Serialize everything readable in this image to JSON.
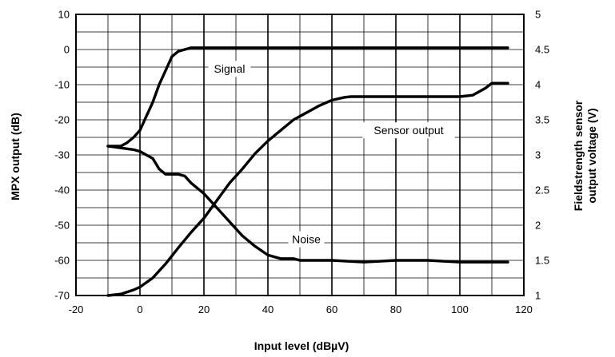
{
  "chart_data": {
    "type": "line",
    "title": "",
    "xlabel": "Input level (dBµV)",
    "ylabel": "MPX output (dB)",
    "y2label_lines": [
      "Fieldstrength sensor",
      "output  voltage (V)"
    ],
    "xlim": [
      -20,
      120
    ],
    "ylim": [
      -70,
      10
    ],
    "y2lim": [
      1,
      5
    ],
    "x_ticks": [
      -20,
      0,
      20,
      40,
      60,
      80,
      100,
      120
    ],
    "y_ticks": [
      10,
      0,
      -10,
      -20,
      -30,
      -40,
      -50,
      -60,
      -70
    ],
    "y2_ticks": [
      5,
      4.5,
      4,
      3.5,
      3,
      2.5,
      2,
      1.5,
      1
    ],
    "grid": true,
    "legend": "none",
    "series": [
      {
        "name": "Signal",
        "axis": "left",
        "x": [
          -10,
          -6,
          -4,
          -2,
          0,
          2,
          4,
          6,
          8,
          10,
          12,
          14,
          16,
          18,
          20,
          40,
          60,
          80,
          100,
          115
        ],
        "y": [
          -27.5,
          -27.5,
          -26.5,
          -25,
          -23,
          -19,
          -15,
          -10,
          -6,
          -2,
          -0.5,
          0,
          0.5,
          0.5,
          0.5,
          0.5,
          0.5,
          0.5,
          0.5,
          0.5
        ]
      },
      {
        "name": "Noise",
        "axis": "left",
        "x": [
          -10,
          -6,
          -2,
          0,
          2,
          4,
          6,
          8,
          12,
          14,
          16,
          20,
          24,
          28,
          32,
          36,
          40,
          44,
          48,
          50,
          52,
          56,
          60,
          70,
          80,
          90,
          100,
          115
        ],
        "y": [
          -27.5,
          -28,
          -28.5,
          -29,
          -30,
          -31,
          -34,
          -35.5,
          -35.5,
          -36,
          -38,
          -41,
          -45,
          -49,
          -53,
          -56,
          -58.5,
          -59.5,
          -59.5,
          -60,
          -60,
          -60,
          -60,
          -60.5,
          -60,
          -60,
          -60.5,
          -60.5
        ]
      },
      {
        "name": "Sensor  output",
        "axis": "right",
        "x": [
          -10,
          -6,
          -2,
          0,
          4,
          8,
          12,
          16,
          20,
          24,
          28,
          32,
          36,
          40,
          44,
          48,
          52,
          56,
          60,
          64,
          66,
          70,
          80,
          90,
          100,
          104,
          108,
          110,
          115
        ],
        "y": [
          1,
          1.02,
          1.08,
          1.12,
          1.25,
          1.45,
          1.68,
          1.9,
          2.1,
          2.35,
          2.6,
          2.8,
          3.02,
          3.2,
          3.35,
          3.5,
          3.6,
          3.7,
          3.78,
          3.82,
          3.83,
          3.83,
          3.83,
          3.83,
          3.83,
          3.85,
          3.95,
          4.02,
          4.02
        ]
      }
    ],
    "annotations": [
      {
        "text": "Signal",
        "x": 28,
        "y": -5.5
      },
      {
        "text": "Sensor  output",
        "x": 84,
        "y": -23
      },
      {
        "text": "Noise",
        "x": 52,
        "y": -54
      }
    ]
  }
}
